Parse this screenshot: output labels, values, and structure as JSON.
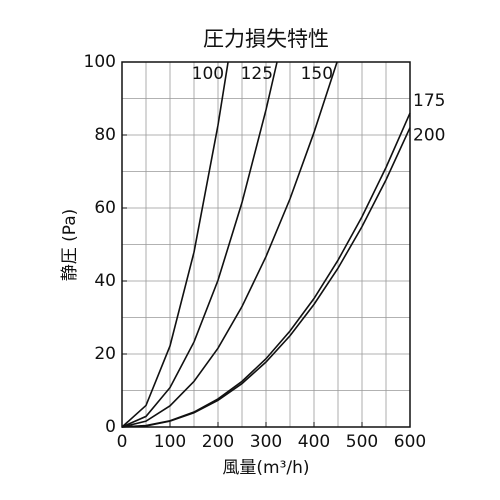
{
  "chart_data": {
    "type": "line",
    "title": "圧力損失特性",
    "x_label": "風量(m³/h)",
    "y_label": "静圧 (Pa)",
    "xlim": [
      0,
      600
    ],
    "ylim": [
      0,
      100
    ],
    "xticks": [
      0,
      100,
      200,
      300,
      400,
      500,
      600
    ],
    "yticks": [
      0,
      20,
      40,
      60,
      80,
      100
    ],
    "xgrid": [
      50,
      100,
      150,
      200,
      250,
      300,
      350,
      400,
      450,
      500,
      550
    ],
    "ygrid": [
      10,
      20,
      30,
      40,
      50,
      60,
      70,
      80,
      90
    ],
    "grid": true,
    "series": [
      {
        "name": "100",
        "color": "#111111",
        "x": [
          0,
          50,
          100,
          150,
          200,
          221
        ],
        "values": [
          0,
          5.9,
          22.2,
          47.9,
          82.7,
          100
        ]
      },
      {
        "name": "125",
        "color": "#111111",
        "x": [
          0,
          50,
          100,
          150,
          200,
          250,
          300,
          323
        ],
        "values": [
          0,
          2.9,
          10.8,
          23.3,
          40.2,
          61.5,
          86.9,
          100
        ]
      },
      {
        "name": "150",
        "color": "#111111",
        "x": [
          0,
          50,
          100,
          150,
          200,
          250,
          300,
          350,
          400,
          448
        ],
        "values": [
          0,
          1.6,
          5.8,
          12.5,
          21.6,
          33,
          46.7,
          62.5,
          80.7,
          100
        ]
      },
      {
        "name": "175",
        "color": "#111111",
        "x": [
          0,
          50,
          100,
          150,
          200,
          250,
          300,
          350,
          400,
          450,
          500,
          550,
          600
        ],
        "values": [
          0,
          0.4,
          1.7,
          4.1,
          7.7,
          12.5,
          18.7,
          26.3,
          35.2,
          45.7,
          57.6,
          71.1,
          86
        ]
      },
      {
        "name": "200",
        "color": "#111111",
        "x": [
          0,
          50,
          100,
          150,
          200,
          250,
          300,
          350,
          400,
          450,
          500,
          550,
          600
        ],
        "values": [
          0,
          0.3,
          1.6,
          3.9,
          7.3,
          11.9,
          17.8,
          25,
          33.6,
          43.5,
          54.9,
          67.7,
          82
        ]
      }
    ]
  }
}
